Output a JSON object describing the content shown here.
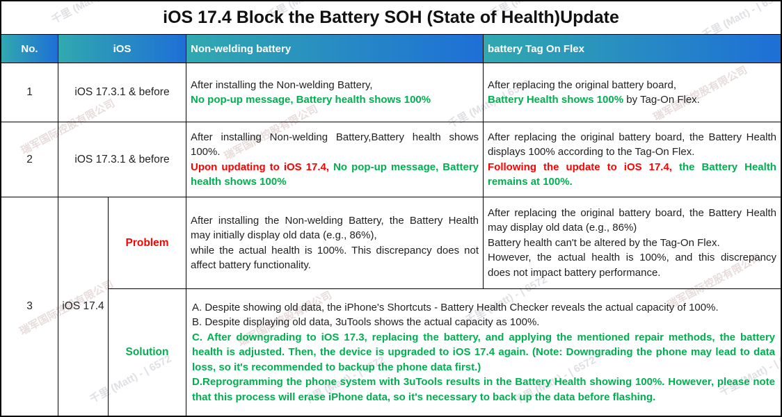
{
  "title": "iOS 17.4 Block the Battery SOH (State of Health)Update",
  "colors": {
    "green": "#00B050",
    "red": "#FF0000",
    "header_teal": "#31A9AF",
    "header_blue": "#1E6FD6"
  },
  "header": {
    "col_no": "No.",
    "col_ios": "iOS",
    "col_nonwelding": "Non-welding battery",
    "col_tagonflex": "battery Tag On Flex"
  },
  "rows": {
    "row1": {
      "no": "1",
      "ios": "iOS 17.3.1 & before",
      "nonwelding": {
        "black1": "After installing the Non-welding Battery,",
        "green1": "No pop-up message, Battery health shows 100%"
      },
      "tagonflex": {
        "black1": "After replacing the original battery board,",
        "green1": "Battery Health shows 100%",
        "black2": " by Tag-On Flex."
      }
    },
    "row2": {
      "no": "2",
      "ios": "iOS 17.3.1 & before",
      "nonwelding": {
        "black1": "After installing Non-welding Battery,Battery health shows 100%.",
        "red1": "Upon updating to iOS 17.4,",
        "green1": " No pop-up message, Battery health shows 100%"
      },
      "tagonflex": {
        "black1": "After replacing the original battery board, the Battery Health displays 100% according to the Tag-On Flex.",
        "red1": "Following the update to iOS 17.4,",
        "green1": " the Battery Health remains at 100%."
      }
    },
    "row3": {
      "no": "3",
      "ios": "iOS 17.4",
      "problem_label": "Problem",
      "solution_label": "Solution",
      "problem": {
        "nonwelding": "After installing the Non-welding Battery, the Battery Health may initially display old data (e.g., 86%),\nwhile the actual health is 100%. This discrepancy does not affect battery functionality.",
        "tagonflex": "After replacing the original battery board, the Battery Health may display old data (e.g., 86%)\nBattery health can't be altered by the Tag-On Flex.\nHowever, the actual health is 100%, and this discrepancy does not impact battery performance."
      },
      "solution": {
        "line_a": "A. Despite showing old data, the iPhone's Shortcuts - Battery Health Checker reveals the actual capacity of 100%.",
        "line_b": "B. Despite displaying old data, 3uTools shows the actual capacity as 100%.",
        "line_c": "C. After downgrading to iOS 17.3, replacing the battery, and applying the mentioned repair methods, the battery health is adjusted. Then, the device is upgraded to iOS 17.4 again. (Note: Downgrading the phone may lead to data loss, so it's recommended to backup the phone data first.)",
        "line_d": "D.Reprogramming the phone system with 3uTools results in the Battery Health showing 100%. However, please note that this process will erase iPhone data, so it's necessary to back up the data before flashing."
      }
    }
  },
  "watermarks": {
    "text1": "千里 (Matt) - | 6572",
    "text2": "瑞军国际控股有限公司"
  }
}
